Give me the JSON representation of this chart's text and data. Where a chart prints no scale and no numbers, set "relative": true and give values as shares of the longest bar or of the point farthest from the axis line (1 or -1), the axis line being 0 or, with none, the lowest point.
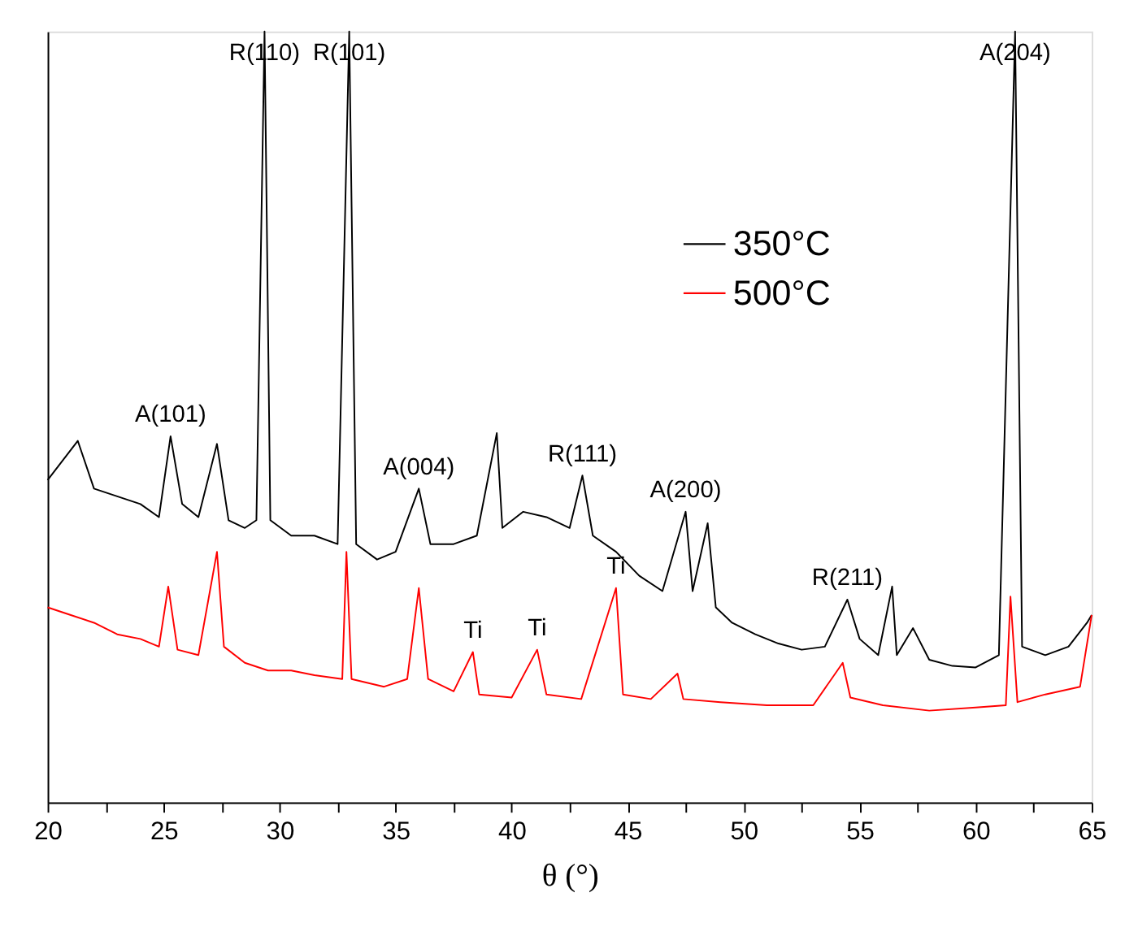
{
  "chart_data": {
    "type": "line",
    "relative": true,
    "xlabel": "θ (°)",
    "xlim": [
      20,
      65
    ],
    "xticks": [
      20,
      {
        "value": 22.5,
        "label": null
      },
      25,
      {
        "value": 27.5,
        "label": null
      },
      30,
      {
        "value": 32.5,
        "label": null
      },
      35,
      {
        "value": 37.5,
        "label": null
      },
      40,
      {
        "value": 42.5,
        "label": null
      },
      45,
      {
        "value": 47.5,
        "label": null
      },
      50,
      {
        "value": 52.5,
        "label": null
      },
      55,
      {
        "value": 57.5,
        "label": null
      },
      60,
      {
        "value": 62.5,
        "label": null
      },
      65
    ],
    "grid": false,
    "legend": "top right",
    "line_style": "solid",
    "marker": "none",
    "series": [
      {
        "name": "350°C",
        "color": "#000000",
        "x": [
          20,
          21.3,
          22,
          23,
          24,
          24.8,
          25.3,
          25.8,
          26.5,
          27.3,
          27.8,
          28.5,
          29.0,
          29.35,
          29.6,
          30.5,
          31.5,
          32.5,
          33.0,
          33.3,
          34.2,
          35,
          36.0,
          36.5,
          37.5,
          38.5,
          39.36,
          39.6,
          40.5,
          41.5,
          42.5,
          43.05,
          43.5,
          44.5,
          45.5,
          46.5,
          47.5,
          47.8,
          48.45,
          48.8,
          49.5,
          50.5,
          51.5,
          52.5,
          53.5,
          54.47,
          55,
          55.8,
          56.4,
          56.6,
          57.3,
          58,
          59,
          60,
          61,
          61.7,
          62,
          63,
          64,
          64.8,
          65
        ],
        "values": [
          0.418,
          0.469,
          0.407,
          0.397,
          0.387,
          0.37,
          0.475,
          0.387,
          0.37,
          0.465,
          0.366,
          0.356,
          0.366,
          1.0,
          0.366,
          0.346,
          0.346,
          0.335,
          1.0,
          0.335,
          0.315,
          0.325,
          0.407,
          0.335,
          0.335,
          0.346,
          0.479,
          0.356,
          0.377,
          0.37,
          0.356,
          0.424,
          0.346,
          0.325,
          0.294,
          0.274,
          0.377,
          0.274,
          0.362,
          0.253,
          0.233,
          0.218,
          0.206,
          0.198,
          0.202,
          0.263,
          0.212,
          0.191,
          0.28,
          0.191,
          0.226,
          0.185,
          0.177,
          0.175,
          0.191,
          1.0,
          0.202,
          0.191,
          0.202,
          0.233,
          0.243
        ]
      },
      {
        "name": "500°C",
        "color": "#ff0000",
        "x": [
          20,
          21,
          22,
          23,
          24,
          24.8,
          25.2,
          25.6,
          26.5,
          27.3,
          27.6,
          28.5,
          29.5,
          30.5,
          31.5,
          32.7,
          32.88,
          33.1,
          34.5,
          35.5,
          36.0,
          36.4,
          37.5,
          38.33,
          38.6,
          40,
          41.1,
          41.5,
          43,
          44.5,
          44.8,
          46,
          47.15,
          47.4,
          49,
          51,
          53,
          54.27,
          54.6,
          56,
          58,
          60,
          61.3,
          61.5,
          61.8,
          63,
          64.5,
          65
        ],
        "values": [
          0.253,
          0.243,
          0.233,
          0.218,
          0.212,
          0.202,
          0.28,
          0.198,
          0.191,
          0.325,
          0.202,
          0.181,
          0.171,
          0.171,
          0.165,
          0.16,
          0.325,
          0.16,
          0.15,
          0.16,
          0.278,
          0.16,
          0.144,
          0.195,
          0.14,
          0.136,
          0.198,
          0.14,
          0.134,
          0.278,
          0.14,
          0.134,
          0.167,
          0.134,
          0.13,
          0.126,
          0.126,
          0.181,
          0.136,
          0.126,
          0.119,
          0.123,
          0.126,
          0.267,
          0.13,
          0.14,
          0.15,
          0.243
        ]
      }
    ],
    "annotations": [
      {
        "text": "A(101)",
        "x": 25.3,
        "y": 0.475
      },
      {
        "text": "R(110)",
        "x": 29.35,
        "y": 1.0
      },
      {
        "text": "R(101)",
        "x": 33.0,
        "y": 1.0
      },
      {
        "text": "A(004)",
        "x": 36.0,
        "y": 0.407
      },
      {
        "text": "R(111)",
        "x": 43.05,
        "y": 0.424
      },
      {
        "text": "A(200)",
        "x": 47.5,
        "y": 0.377
      },
      {
        "text": "R(211)",
        "x": 54.47,
        "y": 0.263
      },
      {
        "text": "A(204)",
        "x": 61.7,
        "y": 1.0
      },
      {
        "text": "Ti",
        "x": 38.33,
        "y": 0.195
      },
      {
        "text": "Ti",
        "x": 41.1,
        "y": 0.198
      },
      {
        "text": "Ti",
        "x": 44.5,
        "y": 0.278
      }
    ]
  }
}
